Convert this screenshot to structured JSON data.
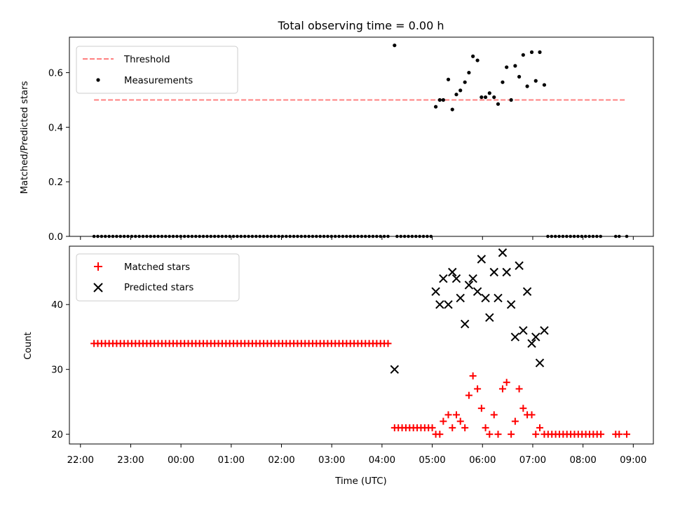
{
  "chart_data": {
    "type": "scatter",
    "title": "Total observing time = 0.00 h",
    "xlabel": "Time (UTC)",
    "x_unit": "hours_relative_to_midnight",
    "x_ticks": [
      {
        "value": -2,
        "label": "22:00"
      },
      {
        "value": -1,
        "label": "23:00"
      },
      {
        "value": 0,
        "label": "00:00"
      },
      {
        "value": 1,
        "label": "01:00"
      },
      {
        "value": 2,
        "label": "02:00"
      },
      {
        "value": 3,
        "label": "03:00"
      },
      {
        "value": 4,
        "label": "04:00"
      },
      {
        "value": 5,
        "label": "05:00"
      },
      {
        "value": 6,
        "label": "06:00"
      },
      {
        "value": 7,
        "label": "07:00"
      },
      {
        "value": 8,
        "label": "08:00"
      },
      {
        "value": 9,
        "label": "09:00"
      }
    ],
    "xlim": [
      -2.22,
      9.4
    ],
    "panels": [
      {
        "name": "ratio",
        "ylabel": "Matched/Predicted stars",
        "ylim": [
          0,
          0.73
        ],
        "y_ticks": [
          {
            "value": 0,
            "label": "0.0"
          },
          {
            "value": 0.2,
            "label": "0.2"
          },
          {
            "value": 0.4,
            "label": "0.4"
          },
          {
            "value": 0.6,
            "label": "0.6"
          }
        ],
        "legend": {
          "location": "upper-left",
          "entries": [
            "Threshold",
            "Measurements"
          ]
        },
        "threshold": {
          "name": "Threshold",
          "y": 0.5,
          "x_range": [
            -1.73,
            8.87
          ],
          "color": "#ff8080",
          "dash": true
        },
        "measurements": {
          "name": "Measurements",
          "color": "#000000",
          "zero_x_ranges": [
            {
              "start": -1.73,
              "end": 4.12,
              "step": 0.075
            },
            {
              "start": 4.3,
              "end": 5.0,
              "step": 0.075
            },
            {
              "start": 7.3,
              "end": 8.4,
              "step": 0.075
            }
          ],
          "zero_points_extra": [
            8.65,
            8.72,
            8.87
          ],
          "points": [
            [
              4.25,
              0.7
            ],
            [
              5.07,
              0.475
            ],
            [
              5.15,
              0.5
            ],
            [
              5.22,
              0.5
            ],
            [
              5.32,
              0.575
            ],
            [
              5.4,
              0.465
            ],
            [
              5.48,
              0.52
            ],
            [
              5.56,
              0.535
            ],
            [
              5.65,
              0.565
            ],
            [
              5.73,
              0.6
            ],
            [
              5.81,
              0.66
            ],
            [
              5.9,
              0.645
            ],
            [
              5.98,
              0.51
            ],
            [
              6.06,
              0.51
            ],
            [
              6.14,
              0.525
            ],
            [
              6.23,
              0.51
            ],
            [
              6.31,
              0.485
            ],
            [
              6.4,
              0.565
            ],
            [
              6.48,
              0.62
            ],
            [
              6.57,
              0.5
            ],
            [
              6.65,
              0.625
            ],
            [
              6.73,
              0.585
            ],
            [
              6.81,
              0.665
            ],
            [
              6.89,
              0.55
            ],
            [
              6.98,
              0.675
            ],
            [
              7.06,
              0.57
            ],
            [
              7.14,
              0.675
            ],
            [
              7.23,
              0.555
            ]
          ]
        }
      },
      {
        "name": "counts",
        "ylabel": "Count",
        "ylim": [
          18.5,
          49
        ],
        "y_ticks": [
          {
            "value": 20,
            "label": "20"
          },
          {
            "value": 30,
            "label": "30"
          },
          {
            "value": 40,
            "label": "40"
          }
        ],
        "legend": {
          "location": "upper-left",
          "entries": [
            "Matched stars",
            "Predicted stars"
          ]
        },
        "matched": {
          "name": "Matched stars",
          "color": "#ff0000",
          "runs": [
            {
              "start": -1.73,
              "end": 4.12,
              "step": 0.075,
              "y": 34
            },
            {
              "start": 4.25,
              "end": 5.0,
              "step": 0.075,
              "y": 21
            },
            {
              "start": 7.23,
              "end": 8.4,
              "step": 0.075,
              "y": 20
            }
          ],
          "points": [
            [
              5.07,
              20
            ],
            [
              5.15,
              20
            ],
            [
              5.22,
              22
            ],
            [
              5.32,
              23
            ],
            [
              5.4,
              21
            ],
            [
              5.48,
              23
            ],
            [
              5.56,
              22
            ],
            [
              5.65,
              21
            ],
            [
              5.73,
              26
            ],
            [
              5.81,
              29
            ],
            [
              5.9,
              27
            ],
            [
              5.98,
              24
            ],
            [
              6.06,
              21
            ],
            [
              6.14,
              20
            ],
            [
              6.23,
              23
            ],
            [
              6.31,
              20
            ],
            [
              6.4,
              27
            ],
            [
              6.48,
              28
            ],
            [
              6.57,
              20
            ],
            [
              6.65,
              22
            ],
            [
              6.73,
              27
            ],
            [
              6.81,
              24
            ],
            [
              6.89,
              23
            ],
            [
              6.98,
              23
            ],
            [
              7.06,
              20
            ],
            [
              7.14,
              21
            ],
            [
              8.65,
              20
            ],
            [
              8.72,
              20
            ],
            [
              8.87,
              20
            ]
          ]
        },
        "predicted": {
          "name": "Predicted stars",
          "color": "#000000",
          "points": [
            [
              4.25,
              30
            ],
            [
              5.07,
              42
            ],
            [
              5.15,
              40
            ],
            [
              5.22,
              44
            ],
            [
              5.32,
              40
            ],
            [
              5.4,
              45
            ],
            [
              5.48,
              44
            ],
            [
              5.56,
              41
            ],
            [
              5.65,
              37
            ],
            [
              5.73,
              43
            ],
            [
              5.81,
              44
            ],
            [
              5.9,
              42
            ],
            [
              5.98,
              47
            ],
            [
              6.06,
              41
            ],
            [
              6.14,
              38
            ],
            [
              6.23,
              45
            ],
            [
              6.31,
              41
            ],
            [
              6.4,
              48
            ],
            [
              6.48,
              45
            ],
            [
              6.57,
              40
            ],
            [
              6.65,
              35
            ],
            [
              6.73,
              46
            ],
            [
              6.81,
              36
            ],
            [
              6.89,
              42
            ],
            [
              6.98,
              34
            ],
            [
              7.06,
              35
            ],
            [
              7.14,
              31
            ],
            [
              7.23,
              36
            ]
          ]
        }
      }
    ]
  }
}
